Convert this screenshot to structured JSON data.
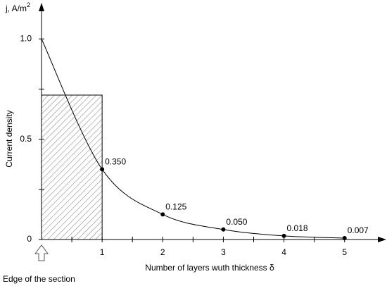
{
  "chart_data": {
    "type": "line",
    "ylabel_text": "j, A/m",
    "ylabel_sup": "2",
    "ylabel": "Current density",
    "xlabel": "Number of layers wuth thickness δ",
    "annotation": "Edge of the section",
    "x": [
      0,
      1,
      2,
      3,
      4,
      5
    ],
    "series": [
      {
        "color": "#000000",
        "values": [
          1.0,
          0.35,
          0.125,
          0.05,
          0.018,
          0.007
        ],
        "value_labels": [
          null,
          "0.350",
          "0.125",
          "0.050",
          "0.018",
          "0.007"
        ]
      }
    ],
    "shaded_area": {
      "x": [
        0,
        1
      ],
      "y": 0.72
    },
    "xlim": [
      0,
      5.7
    ],
    "ylim": [
      0,
      1.18
    ],
    "xticks": [
      1,
      2,
      3,
      4,
      5
    ],
    "xminorticks": [
      0.5,
      1.5,
      2.5,
      3.5,
      4.5
    ],
    "yticks": [
      0,
      0.5,
      {
        "value": 1,
        "label": "1.0"
      }
    ],
    "yminorticks": [
      0.25,
      0.75
    ]
  }
}
